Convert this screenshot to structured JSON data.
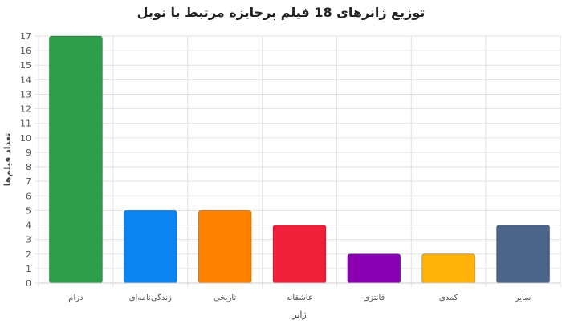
{
  "chart_data": {
    "type": "bar",
    "title": "توزیع ژانرهای 18 فیلم پرجایزه مرتبط با نوبل",
    "xlabel": "ژانر",
    "ylabel": "تعداد فیلم‌ها",
    "categories": [
      "درام",
      "زندگی‌نامه‌ای",
      "تاریخی",
      "عاشقانه",
      "فانتزی",
      "کمدی",
      "سایر"
    ],
    "values": [
      17,
      5,
      5,
      4,
      2,
      2,
      4
    ],
    "colors": [
      "#2f9e4c",
      "#0a84f0",
      "#ff8300",
      "#f0203a",
      "#8c00b4",
      "#ffb30a",
      "#4a6587"
    ],
    "ylim": [
      0,
      17
    ],
    "yticks": [
      0,
      1,
      2,
      3,
      4,
      5,
      6,
      7,
      8,
      9,
      10,
      11,
      12,
      13,
      14,
      15,
      16,
      17
    ],
    "grid": true,
    "legend": "none"
  }
}
